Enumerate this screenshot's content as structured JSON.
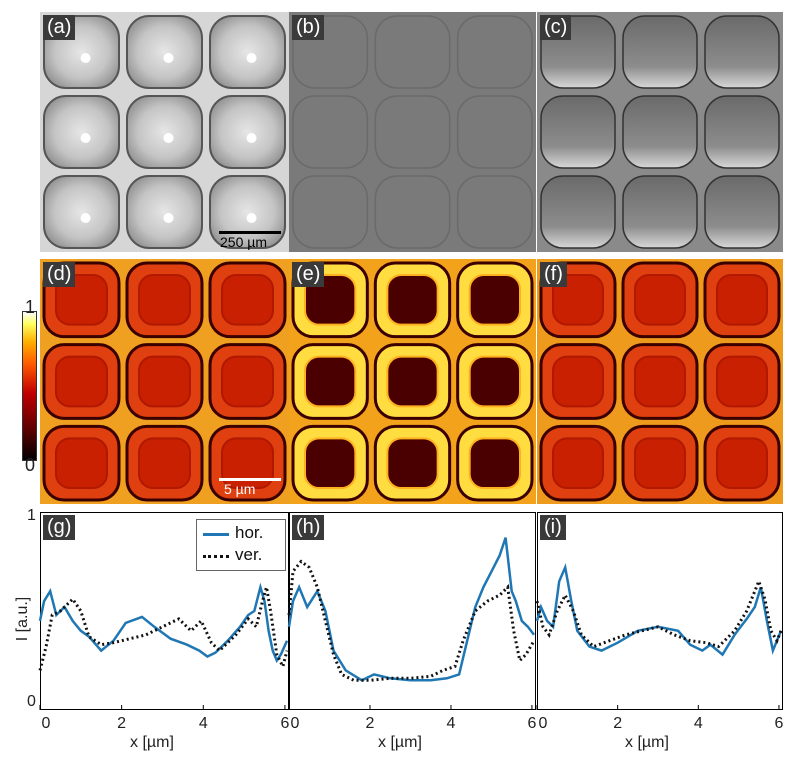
{
  "figure": {
    "panel_labels": [
      "(a)",
      "(b)",
      "(c)",
      "(d)",
      "(e)",
      "(f)",
      "(g)",
      "(h)",
      "(i)"
    ],
    "scalebar_top": "250 µm",
    "scalebar_bottom": "5 µm",
    "colorbar": {
      "max_label": "1",
      "min_label": "0"
    },
    "colors": {
      "hor": "#1f77b4",
      "ver": "#111111"
    }
  },
  "chart_data": [
    {
      "type": "line",
      "panel": "(g)",
      "xlabel": "x [µm]",
      "ylabel": "I [a.u.]",
      "xlim": [
        0,
        6.1
      ],
      "ylim": [
        0,
        1
      ],
      "xticks": [
        0,
        2,
        4,
        6
      ],
      "yticks_labels": [
        "0",
        "1"
      ],
      "legend": {
        "position": "top-right",
        "entries": [
          "hor.",
          "ver."
        ]
      },
      "series": [
        {
          "name": "hor.",
          "style": "solid",
          "x": [
            0,
            0.1,
            0.25,
            0.4,
            0.6,
            0.8,
            1.0,
            1.2,
            1.5,
            1.8,
            2.1,
            2.5,
            2.8,
            3.2,
            3.6,
            3.9,
            4.1,
            4.3,
            4.6,
            4.9,
            5.1,
            5.25,
            5.4,
            5.5,
            5.6,
            5.7,
            5.8,
            5.9,
            6.05
          ],
          "y": [
            0.45,
            0.55,
            0.6,
            0.48,
            0.52,
            0.45,
            0.4,
            0.37,
            0.3,
            0.35,
            0.44,
            0.47,
            0.42,
            0.36,
            0.33,
            0.3,
            0.27,
            0.29,
            0.35,
            0.42,
            0.48,
            0.5,
            0.62,
            0.55,
            0.4,
            0.3,
            0.25,
            0.28,
            0.35
          ]
        },
        {
          "name": "ver.",
          "style": "dotted",
          "x": [
            0,
            0.15,
            0.3,
            0.5,
            0.8,
            1.0,
            1.2,
            1.5,
            1.8,
            2.2,
            2.6,
            3.0,
            3.4,
            3.7,
            3.95,
            4.2,
            4.4,
            4.8,
            5.1,
            5.3,
            5.45,
            5.55,
            5.65,
            5.8,
            5.95,
            6.05
          ],
          "y": [
            0.2,
            0.32,
            0.48,
            0.5,
            0.56,
            0.5,
            0.37,
            0.33,
            0.34,
            0.36,
            0.38,
            0.42,
            0.46,
            0.4,
            0.45,
            0.34,
            0.3,
            0.38,
            0.46,
            0.42,
            0.55,
            0.62,
            0.5,
            0.28,
            0.22,
            0.3
          ]
        }
      ]
    },
    {
      "type": "line",
      "panel": "(h)",
      "xlabel": "x [µm]",
      "xlim": [
        0,
        6.1
      ],
      "ylim": [
        0,
        1
      ],
      "xticks": [
        0,
        2,
        4,
        6
      ],
      "series": [
        {
          "name": "hor.",
          "style": "solid",
          "x": [
            0,
            0.1,
            0.25,
            0.45,
            0.7,
            0.9,
            1.1,
            1.4,
            1.8,
            2.1,
            2.5,
            3.0,
            3.5,
            3.9,
            4.2,
            4.4,
            4.6,
            4.8,
            5.0,
            5.2,
            5.35,
            5.5,
            5.6,
            5.75,
            5.9,
            6.05
          ],
          "y": [
            0.42,
            0.55,
            0.62,
            0.52,
            0.6,
            0.5,
            0.3,
            0.2,
            0.15,
            0.18,
            0.16,
            0.15,
            0.15,
            0.16,
            0.18,
            0.35,
            0.52,
            0.62,
            0.7,
            0.78,
            0.87,
            0.6,
            0.55,
            0.45,
            0.42,
            0.38
          ]
        },
        {
          "name": "ver.",
          "style": "dotted",
          "x": [
            0,
            0.1,
            0.3,
            0.5,
            0.7,
            0.9,
            1.1,
            1.3,
            1.6,
            2.0,
            2.5,
            3.0,
            3.5,
            3.8,
            4.1,
            4.3,
            4.6,
            4.9,
            5.2,
            5.4,
            5.55,
            5.7,
            5.85,
            6.05
          ],
          "y": [
            0.48,
            0.7,
            0.75,
            0.72,
            0.62,
            0.45,
            0.28,
            0.18,
            0.15,
            0.15,
            0.16,
            0.16,
            0.17,
            0.2,
            0.22,
            0.35,
            0.5,
            0.55,
            0.58,
            0.62,
            0.4,
            0.25,
            0.28,
            0.35
          ]
        }
      ]
    },
    {
      "type": "line",
      "panel": "(i)",
      "xlabel": "x [µm]",
      "xlim": [
        0,
        6.1
      ],
      "ylim": [
        0,
        1
      ],
      "xticks": [
        0,
        2,
        4,
        6
      ],
      "series": [
        {
          "name": "hor.",
          "style": "solid",
          "x": [
            0,
            0.1,
            0.25,
            0.4,
            0.55,
            0.7,
            0.85,
            1.0,
            1.3,
            1.6,
            2.0,
            2.5,
            3.0,
            3.5,
            3.8,
            4.1,
            4.3,
            4.6,
            4.9,
            5.2,
            5.4,
            5.55,
            5.7,
            5.85,
            6.05
          ],
          "y": [
            0.45,
            0.52,
            0.45,
            0.42,
            0.65,
            0.72,
            0.55,
            0.4,
            0.32,
            0.3,
            0.34,
            0.4,
            0.42,
            0.4,
            0.33,
            0.3,
            0.33,
            0.28,
            0.38,
            0.46,
            0.52,
            0.62,
            0.45,
            0.3,
            0.4
          ]
        },
        {
          "name": "ver.",
          "style": "dotted",
          "x": [
            0,
            0.15,
            0.3,
            0.5,
            0.7,
            0.9,
            1.1,
            1.4,
            1.8,
            2.2,
            2.6,
            3.0,
            3.4,
            3.8,
            4.2,
            4.5,
            4.9,
            5.2,
            5.4,
            5.5,
            5.65,
            5.8,
            5.95,
            6.05
          ],
          "y": [
            0.55,
            0.42,
            0.38,
            0.5,
            0.58,
            0.5,
            0.38,
            0.32,
            0.35,
            0.38,
            0.4,
            0.42,
            0.38,
            0.35,
            0.34,
            0.32,
            0.4,
            0.5,
            0.6,
            0.65,
            0.56,
            0.4,
            0.35,
            0.4
          ]
        }
      ]
    }
  ]
}
